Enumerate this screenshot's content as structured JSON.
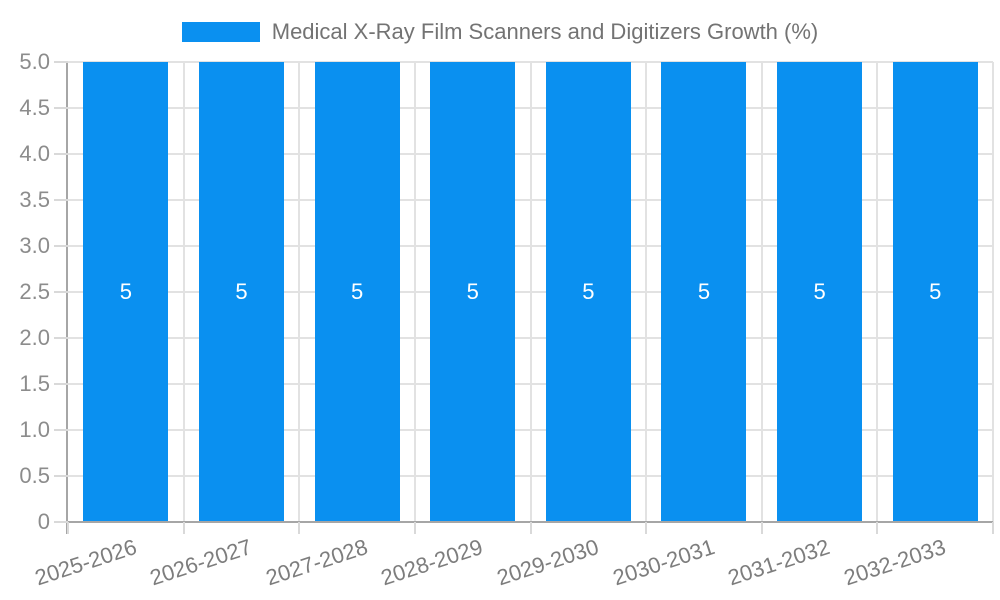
{
  "chart_data": {
    "type": "bar",
    "title": "Medical X-Ray Film Scanners and Digitizers Growth (%)",
    "legend_position": "top",
    "categories": [
      "2025-2026",
      "2026-2027",
      "2027-2028",
      "2028-2029",
      "2029-2030",
      "2030-2031",
      "2031-2032",
      "2032-2033"
    ],
    "series": [
      {
        "name": "Medical X-Ray Film Scanners and Digitizers Growth (%)",
        "values": [
          5,
          5,
          5,
          5,
          5,
          5,
          5,
          5
        ]
      }
    ],
    "bar_value_labels": [
      "5",
      "5",
      "5",
      "5",
      "5",
      "5",
      "5",
      "5"
    ],
    "xlabel": "",
    "ylabel": "",
    "ylim": [
      0,
      5
    ],
    "ytick_labels": [
      "0",
      "0.5",
      "1.0",
      "1.5",
      "2.0",
      "2.5",
      "3.0",
      "3.5",
      "4.0",
      "4.5",
      "5.0"
    ],
    "grid": true,
    "x_label_rotation_deg": -18,
    "colors": {
      "bar": "#0a90f0",
      "bar_label": "#ffffff",
      "grid": "#e2e2e2",
      "tick": "#d9d9d9",
      "axis": "#a6a6a6",
      "y_tick_label": "#8c8c8c",
      "x_tick_label": "#7d7d7d",
      "legend_text": "#737373"
    }
  }
}
